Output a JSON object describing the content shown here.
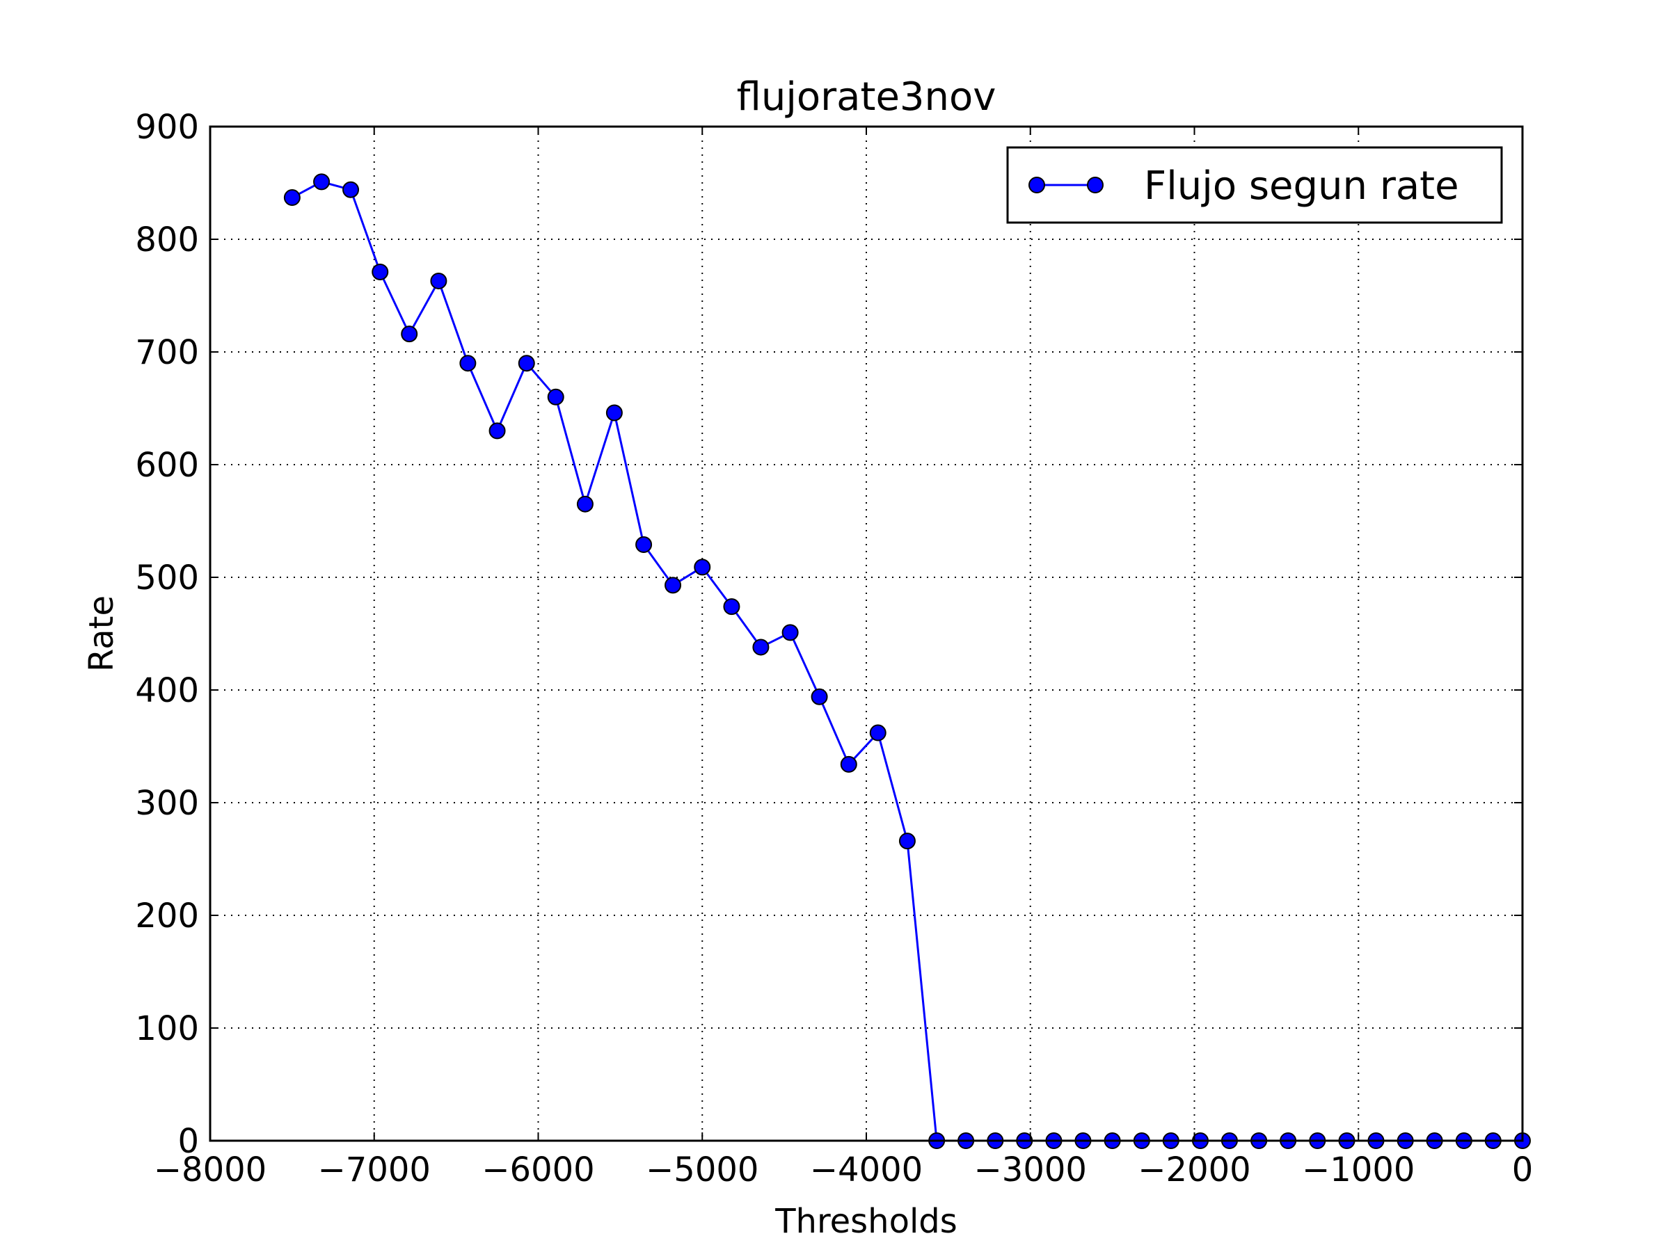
{
  "chart_data": {
    "type": "line",
    "title": "flujorate3nov",
    "xlabel": "Thresholds",
    "ylabel": "Rate",
    "xlim": [
      -8000,
      0
    ],
    "ylim": [
      0,
      900
    ],
    "xticks": [
      -8000,
      -7000,
      -6000,
      -5000,
      -4000,
      -3000,
      -2000,
      -1000,
      0
    ],
    "yticks": [
      0,
      100,
      200,
      300,
      400,
      500,
      600,
      700,
      800,
      900
    ],
    "xtick_labels": [
      "−8000",
      "−7000",
      "−6000",
      "−5000",
      "−4000",
      "−3000",
      "−2000",
      "−1000",
      "0"
    ],
    "ytick_labels": [
      "0",
      "100",
      "200",
      "300",
      "400",
      "500",
      "600",
      "700",
      "800",
      "900"
    ],
    "grid": true,
    "legend_position": "top-right",
    "colors": {
      "series": "#0000ff",
      "marker_edge": "#000000",
      "grid": "#000000",
      "axes": "#000000"
    },
    "series": [
      {
        "name": "Flujo segun rate",
        "marker": "circle",
        "x": [
          -7500,
          -7321,
          -7143,
          -6964,
          -6786,
          -6607,
          -6429,
          -6250,
          -6071,
          -5893,
          -5714,
          -5536,
          -5357,
          -5179,
          -5000,
          -4821,
          -4643,
          -4464,
          -4286,
          -4107,
          -3929,
          -3750,
          -3571,
          -3393,
          -3214,
          -3036,
          -2857,
          -2679,
          -2500,
          -2321,
          -2143,
          -1964,
          -1786,
          -1607,
          -1429,
          -1250,
          -1071,
          -893,
          -714,
          -536,
          -357,
          -179,
          0
        ],
        "y": [
          837,
          851,
          844,
          771,
          716,
          763,
          690,
          630,
          690,
          660,
          565,
          646,
          529,
          493,
          509,
          474,
          438,
          451,
          394,
          334,
          362,
          266,
          0,
          0,
          0,
          0,
          0,
          0,
          0,
          0,
          0,
          0,
          0,
          0,
          0,
          0,
          0,
          0,
          0,
          0,
          0,
          0,
          0
        ]
      }
    ]
  }
}
